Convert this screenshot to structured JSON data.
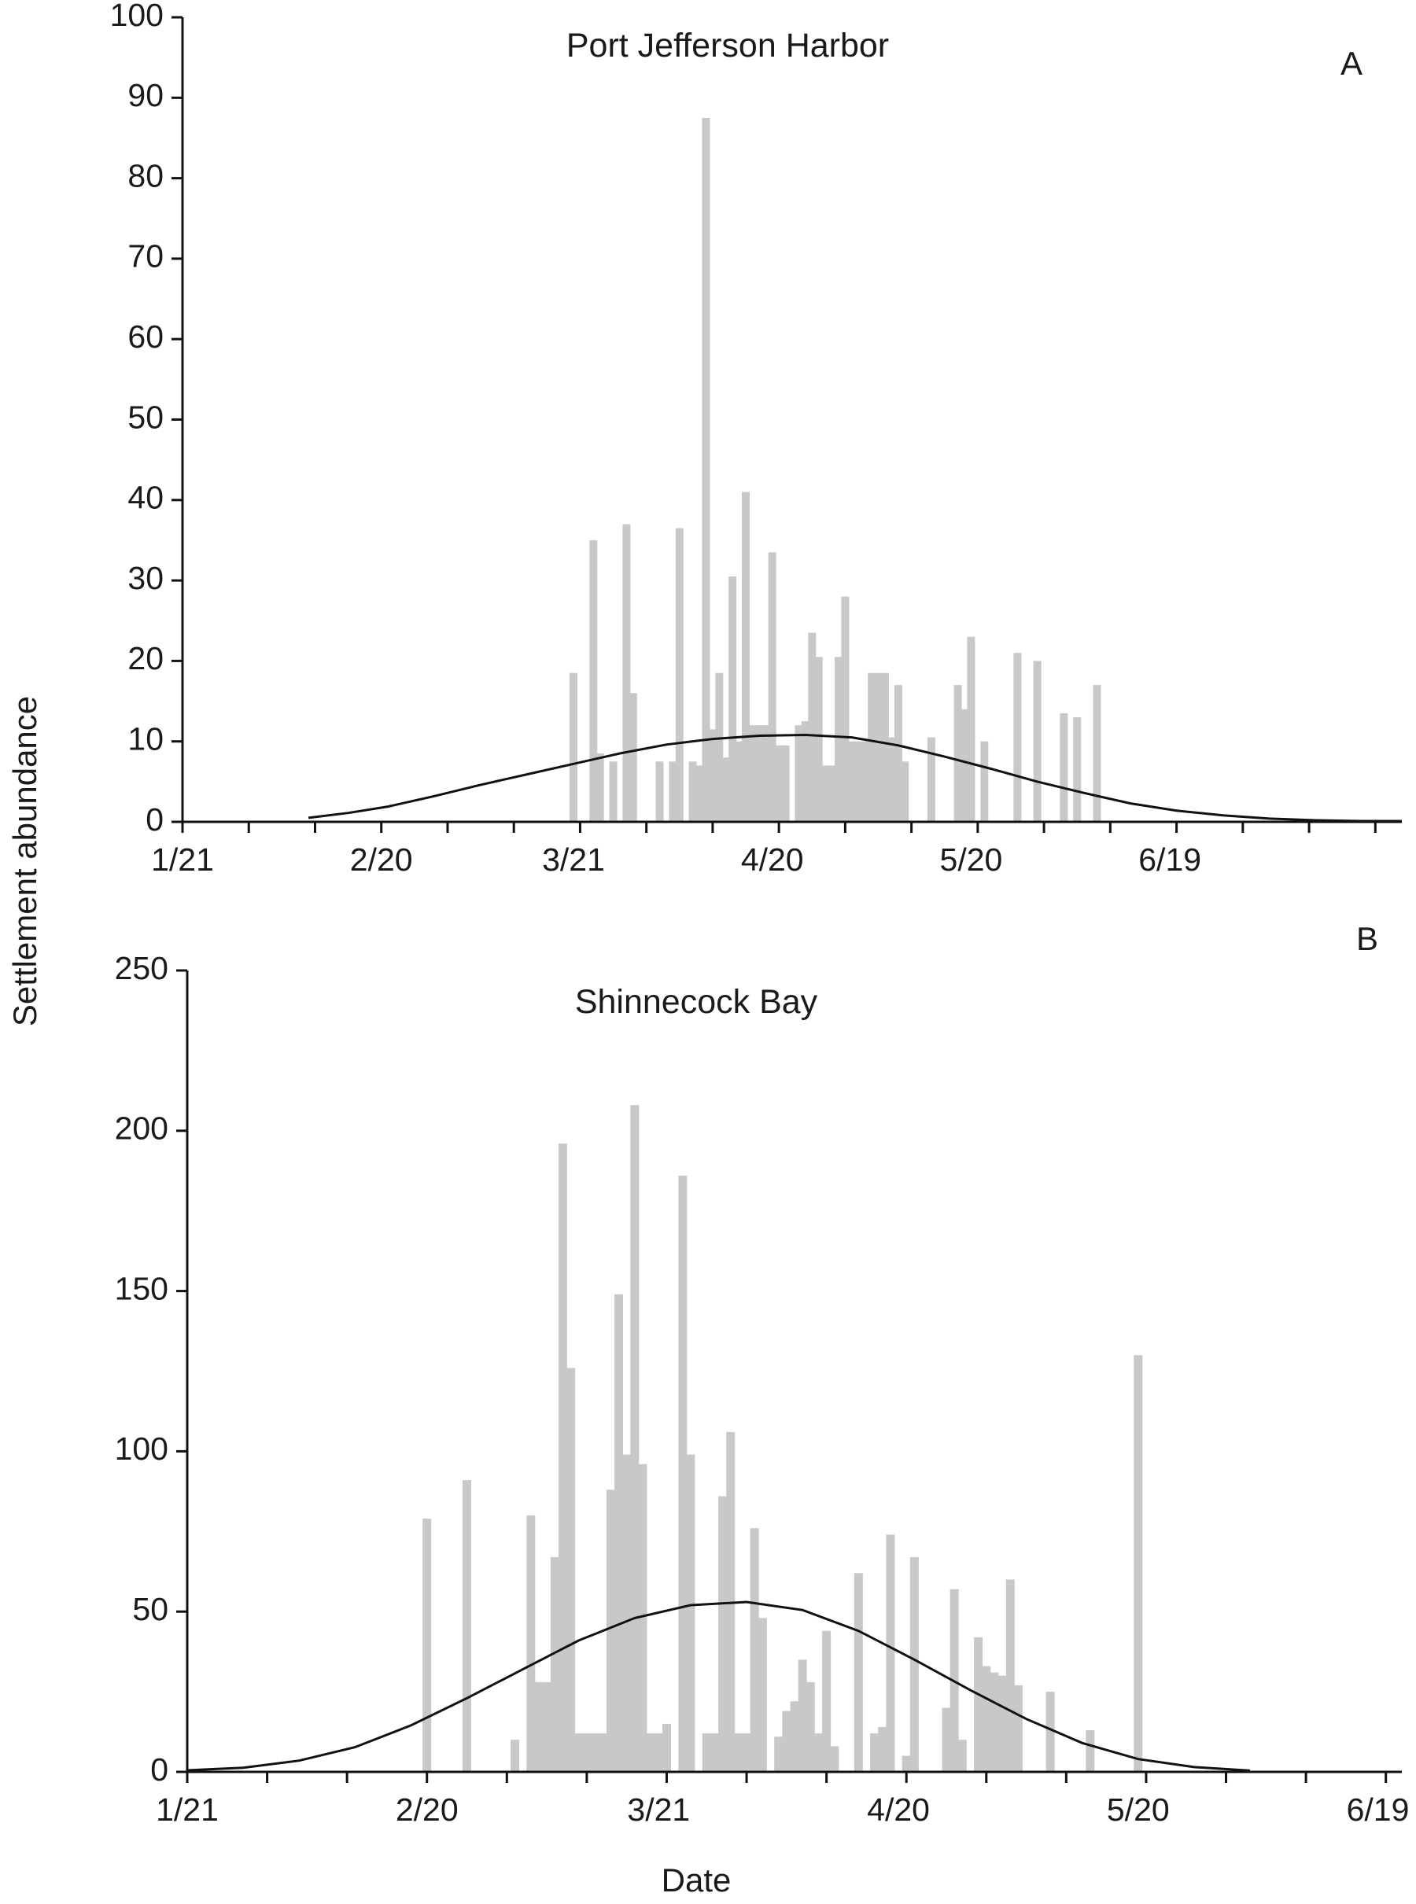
{
  "colors": {
    "bar": "#c8c8c8",
    "curve": "#111111",
    "axis": "#111111"
  },
  "ylabel": "Settlement abundance",
  "xlabel": "Date",
  "chart_data": [
    {
      "type": "bar",
      "panel": "A",
      "title": "Port Jefferson Harbor",
      "x_axis": {
        "type": "date",
        "year_note": "day/month labels only",
        "ticks": [
          "1/21",
          "2/20",
          "3/21",
          "4/20",
          "5/20",
          "6/19"
        ],
        "xlim": [
          "1/21",
          "7/24"
        ],
        "minor_tick_interval_days": 10
      },
      "ylim": [
        0,
        100
      ],
      "yticks": [
        0,
        10,
        20,
        30,
        40,
        50,
        60,
        70,
        80,
        90,
        100
      ],
      "grid": false,
      "series": [
        {
          "kind": "bars",
          "points": [
            {
              "x": "3/21",
              "y": 18.5
            },
            {
              "x": "3/24",
              "y": 35
            },
            {
              "x": "3/25",
              "y": 8.5
            },
            {
              "x": "3/27",
              "y": 7.5
            },
            {
              "x": "3/29",
              "y": 37
            },
            {
              "x": "3/30",
              "y": 16
            },
            {
              "x": "4/3",
              "y": 7.5
            },
            {
              "x": "4/5",
              "y": 7.5
            },
            {
              "x": "4/6",
              "y": 36.5
            },
            {
              "x": "4/8",
              "y": 7.5
            },
            {
              "x": "4/9",
              "y": 7
            },
            {
              "x": "4/10",
              "y": 87.5
            },
            {
              "x": "4/11",
              "y": 11.5
            },
            {
              "x": "4/12",
              "y": 18.5
            },
            {
              "x": "4/13",
              "y": 8
            },
            {
              "x": "4/14",
              "y": 30.5
            },
            {
              "x": "4/15",
              "y": 10
            },
            {
              "x": "4/16",
              "y": 41
            },
            {
              "x": "4/17",
              "y": 12
            },
            {
              "x": "4/18",
              "y": 12
            },
            {
              "x": "4/19",
              "y": 12
            },
            {
              "x": "4/20",
              "y": 33.5
            },
            {
              "x": "4/21",
              "y": 9.5
            },
            {
              "x": "4/22",
              "y": 9.5
            },
            {
              "x": "4/24",
              "y": 12
            },
            {
              "x": "4/25",
              "y": 12.5
            },
            {
              "x": "4/26",
              "y": 23.5
            },
            {
              "x": "4/27",
              "y": 20.5
            },
            {
              "x": "4/28",
              "y": 7
            },
            {
              "x": "4/29",
              "y": 7
            },
            {
              "x": "4/30",
              "y": 20.5
            },
            {
              "x": "5/1",
              "y": 28
            },
            {
              "x": "5/2",
              "y": 10
            },
            {
              "x": "5/3",
              "y": 10
            },
            {
              "x": "5/4",
              "y": 10
            },
            {
              "x": "5/5",
              "y": 18.5
            },
            {
              "x": "5/6",
              "y": 18.5
            },
            {
              "x": "5/7",
              "y": 18.5
            },
            {
              "x": "5/8",
              "y": 10.5
            },
            {
              "x": "5/9",
              "y": 17
            },
            {
              "x": "5/10",
              "y": 7.5
            },
            {
              "x": "5/14",
              "y": 10.5
            },
            {
              "x": "5/18",
              "y": 17
            },
            {
              "x": "5/19",
              "y": 14
            },
            {
              "x": "5/20",
              "y": 23
            },
            {
              "x": "5/22",
              "y": 10
            },
            {
              "x": "5/27",
              "y": 21
            },
            {
              "x": "5/30",
              "y": 20
            },
            {
              "x": "6/3",
              "y": 13.5
            },
            {
              "x": "6/5",
              "y": 13
            },
            {
              "x": "6/8",
              "y": 17
            }
          ]
        },
        {
          "kind": "curve",
          "points": [
            {
              "x": "2/9",
              "y": 0.5
            },
            {
              "x": "2/15",
              "y": 1.1
            },
            {
              "x": "2/21",
              "y": 1.9
            },
            {
              "x": "2/28",
              "y": 3.2
            },
            {
              "x": "3/7",
              "y": 4.6
            },
            {
              "x": "3/14",
              "y": 5.9
            },
            {
              "x": "3/21",
              "y": 7.2
            },
            {
              "x": "3/28",
              "y": 8.5
            },
            {
              "x": "4/4",
              "y": 9.6
            },
            {
              "x": "4/11",
              "y": 10.3
            },
            {
              "x": "4/18",
              "y": 10.7
            },
            {
              "x": "4/25",
              "y": 10.8
            },
            {
              "x": "5/2",
              "y": 10.5
            },
            {
              "x": "5/9",
              "y": 9.5
            },
            {
              "x": "5/16",
              "y": 8.1
            },
            {
              "x": "5/23",
              "y": 6.6
            },
            {
              "x": "5/30",
              "y": 5.0
            },
            {
              "x": "6/6",
              "y": 3.6
            },
            {
              "x": "6/13",
              "y": 2.3
            },
            {
              "x": "6/20",
              "y": 1.4
            },
            {
              "x": "6/27",
              "y": 0.8
            },
            {
              "x": "7/4",
              "y": 0.4
            },
            {
              "x": "7/11",
              "y": 0.2
            },
            {
              "x": "7/18",
              "y": 0.1
            },
            {
              "x": "7/24",
              "y": 0.1
            }
          ]
        }
      ]
    },
    {
      "type": "bar",
      "panel": "B",
      "title": "Shinnecock Bay",
      "x_axis": {
        "type": "date",
        "year_note": "day/month labels only",
        "ticks": [
          "1/21",
          "2/20",
          "3/21",
          "4/20",
          "5/20",
          "6/19"
        ],
        "xlim": [
          "1/21",
          "6/22"
        ],
        "minor_tick_interval_days": 10
      },
      "ylim": [
        0,
        250
      ],
      "yticks": [
        0,
        50,
        100,
        150,
        200,
        250
      ],
      "grid": false,
      "series": [
        {
          "kind": "bars",
          "points": [
            {
              "x": "2/20",
              "y": 79
            },
            {
              "x": "2/25",
              "y": 91
            },
            {
              "x": "3/3",
              "y": 10
            },
            {
              "x": "3/5",
              "y": 80
            },
            {
              "x": "3/6",
              "y": 28
            },
            {
              "x": "3/7",
              "y": 28
            },
            {
              "x": "3/8",
              "y": 67
            },
            {
              "x": "3/9",
              "y": 196
            },
            {
              "x": "3/10",
              "y": 126
            },
            {
              "x": "3/11",
              "y": 12
            },
            {
              "x": "3/12",
              "y": 12
            },
            {
              "x": "3/13",
              "y": 12
            },
            {
              "x": "3/14",
              "y": 12
            },
            {
              "x": "3/15",
              "y": 88
            },
            {
              "x": "3/16",
              "y": 149
            },
            {
              "x": "3/17",
              "y": 99
            },
            {
              "x": "3/18",
              "y": 208
            },
            {
              "x": "3/19",
              "y": 96
            },
            {
              "x": "3/20",
              "y": 12
            },
            {
              "x": "3/21",
              "y": 12
            },
            {
              "x": "3/22",
              "y": 15
            },
            {
              "x": "3/24",
              "y": 186
            },
            {
              "x": "3/25",
              "y": 99
            },
            {
              "x": "3/27",
              "y": 12
            },
            {
              "x": "3/28",
              "y": 12
            },
            {
              "x": "3/29",
              "y": 86
            },
            {
              "x": "3/30",
              "y": 106
            },
            {
              "x": "3/31",
              "y": 12
            },
            {
              "x": "4/1",
              "y": 12
            },
            {
              "x": "4/2",
              "y": 76
            },
            {
              "x": "4/3",
              "y": 48
            },
            {
              "x": "4/5",
              "y": 11
            },
            {
              "x": "4/6",
              "y": 19
            },
            {
              "x": "4/7",
              "y": 22
            },
            {
              "x": "4/8",
              "y": 35
            },
            {
              "x": "4/9",
              "y": 28
            },
            {
              "x": "4/10",
              "y": 12
            },
            {
              "x": "4/11",
              "y": 44
            },
            {
              "x": "4/12",
              "y": 8
            },
            {
              "x": "4/15",
              "y": 62
            },
            {
              "x": "4/17",
              "y": 12
            },
            {
              "x": "4/18",
              "y": 14
            },
            {
              "x": "4/19",
              "y": 74
            },
            {
              "x": "4/21",
              "y": 5
            },
            {
              "x": "4/22",
              "y": 67
            },
            {
              "x": "4/26",
              "y": 20
            },
            {
              "x": "4/27",
              "y": 57
            },
            {
              "x": "4/28",
              "y": 10
            },
            {
              "x": "4/30",
              "y": 42
            },
            {
              "x": "5/1",
              "y": 33
            },
            {
              "x": "5/2",
              "y": 31
            },
            {
              "x": "5/3",
              "y": 30
            },
            {
              "x": "5/4",
              "y": 60
            },
            {
              "x": "5/5",
              "y": 27
            },
            {
              "x": "5/9",
              "y": 25
            },
            {
              "x": "5/14",
              "y": 13
            },
            {
              "x": "5/20",
              "y": 130
            }
          ]
        },
        {
          "kind": "curve",
          "points": [
            {
              "x": "1/21",
              "y": 0.5
            },
            {
              "x": "1/28",
              "y": 1.3
            },
            {
              "x": "2/4",
              "y": 3.5
            },
            {
              "x": "2/11",
              "y": 7.7
            },
            {
              "x": "2/18",
              "y": 14.5
            },
            {
              "x": "2/25",
              "y": 23
            },
            {
              "x": "3/4",
              "y": 32
            },
            {
              "x": "3/11",
              "y": 41
            },
            {
              "x": "3/18",
              "y": 48
            },
            {
              "x": "3/25",
              "y": 52
            },
            {
              "x": "4/1",
              "y": 53
            },
            {
              "x": "4/8",
              "y": 50.5
            },
            {
              "x": "4/15",
              "y": 44
            },
            {
              "x": "4/22",
              "y": 35
            },
            {
              "x": "4/29",
              "y": 25.5
            },
            {
              "x": "5/6",
              "y": 16.5
            },
            {
              "x": "5/13",
              "y": 9
            },
            {
              "x": "5/20",
              "y": 4
            },
            {
              "x": "5/27",
              "y": 1.5
            },
            {
              "x": "6/3",
              "y": 0.4
            }
          ]
        }
      ]
    }
  ]
}
